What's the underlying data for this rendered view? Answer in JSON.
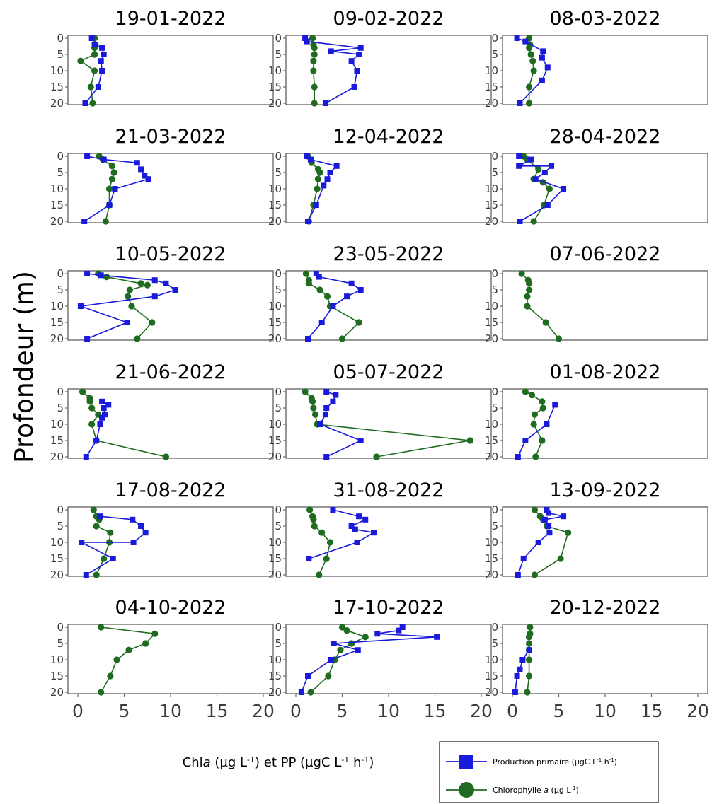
{
  "chart_data": {
    "type": "line",
    "layout": "small-multiples-3x6",
    "y_axis": {
      "label": "Profondeur (m)",
      "range": [
        0,
        20
      ],
      "reversed": true,
      "ticks": [
        0,
        5,
        10,
        15,
        20
      ]
    },
    "x_axis": {
      "label_parts": [
        "Chl",
        "a",
        " (µg L",
        "-1",
        ") et PP (µgC L",
        "-1",
        " h",
        "-1",
        ")"
      ],
      "range": [
        0,
        20
      ],
      "ticks": [
        0,
        5,
        10,
        15,
        20
      ]
    },
    "depths": [
      0,
      2,
      3,
      5,
      7,
      10,
      15,
      20
    ],
    "series": [
      {
        "key": "pp",
        "name": "Production primaire (µgC L⁻¹ h⁻¹)",
        "name_parts": [
          "Production primaire (µgC L",
          "-1",
          " h",
          "-1",
          ")"
        ],
        "color": "#1a1adc",
        "marker": "square"
      },
      {
        "key": "chl",
        "name": "Chlorophylle a (µg L⁻¹)",
        "name_parts": [
          "Chlorophylle ",
          "a",
          " (µg L",
          "-1",
          ")"
        ],
        "color": "#1f6b1f",
        "marker": "circle"
      }
    ],
    "panels": [
      {
        "date": "19-01-2022",
        "pp": [
          [
            1.5,
            0
          ],
          [
            1.8,
            2
          ],
          [
            2.6,
            3
          ],
          [
            2.8,
            5
          ],
          [
            2.5,
            7
          ],
          [
            2.6,
            10
          ],
          [
            2.2,
            15
          ],
          [
            0.8,
            20
          ]
        ],
        "chl": [
          [
            1.8,
            0
          ],
          [
            1.9,
            2
          ],
          [
            1.8,
            3
          ],
          [
            1.8,
            5
          ],
          [
            0.3,
            7
          ],
          [
            1.8,
            10
          ],
          [
            1.4,
            15
          ],
          [
            1.6,
            20
          ]
        ]
      },
      {
        "date": "09-02-2022",
        "pp": [
          [
            1.0,
            0
          ],
          [
            1.2,
            1
          ],
          [
            7.0,
            3
          ],
          [
            3.8,
            4
          ],
          [
            6.8,
            5
          ],
          [
            6.0,
            7
          ],
          [
            6.6,
            10
          ],
          [
            6.3,
            15
          ],
          [
            3.2,
            20
          ]
        ],
        "chl": [
          [
            1.8,
            0
          ],
          [
            1.9,
            2
          ],
          [
            2.0,
            3
          ],
          [
            2.0,
            5
          ],
          [
            1.9,
            7
          ],
          [
            1.9,
            10
          ],
          [
            2.0,
            15
          ],
          [
            2.0,
            20
          ]
        ]
      },
      {
        "date": "08-03-2022",
        "pp": [
          [
            0.5,
            0
          ],
          [
            1.4,
            1
          ],
          [
            3.3,
            4
          ],
          [
            3.2,
            6
          ],
          [
            3.8,
            9
          ],
          [
            3.2,
            13
          ],
          [
            0.8,
            20
          ]
        ],
        "chl": [
          [
            1.8,
            0
          ],
          [
            1.9,
            2
          ],
          [
            1.8,
            3
          ],
          [
            2.0,
            5
          ],
          [
            2.2,
            7
          ],
          [
            2.3,
            10
          ],
          [
            1.8,
            15
          ],
          [
            1.8,
            20
          ]
        ]
      },
      {
        "date": "21-03-2022",
        "pp": [
          [
            1.0,
            0
          ],
          [
            2.8,
            1
          ],
          [
            6.4,
            2
          ],
          [
            6.8,
            4
          ],
          [
            7.2,
            6
          ],
          [
            7.6,
            7
          ],
          [
            4.0,
            10
          ],
          [
            3.4,
            15
          ],
          [
            0.7,
            20
          ]
        ],
        "chl": [
          [
            2.3,
            0
          ],
          [
            2.7,
            1
          ],
          [
            3.7,
            3
          ],
          [
            3.9,
            5
          ],
          [
            3.7,
            7
          ],
          [
            3.4,
            10
          ],
          [
            3.4,
            15
          ],
          [
            3.0,
            20
          ]
        ]
      },
      {
        "date": "12-04-2022",
        "pp": [
          [
            1.2,
            0
          ],
          [
            1.6,
            1
          ],
          [
            4.4,
            3
          ],
          [
            3.7,
            5
          ],
          [
            3.4,
            7
          ],
          [
            3.0,
            9
          ],
          [
            2.2,
            15
          ],
          [
            1.3,
            20
          ]
        ],
        "chl": [
          [
            1.3,
            0
          ],
          [
            1.7,
            2
          ],
          [
            2.4,
            4
          ],
          [
            2.6,
            5
          ],
          [
            2.4,
            7
          ],
          [
            2.3,
            10
          ],
          [
            1.9,
            15
          ],
          [
            1.4,
            20
          ]
        ]
      },
      {
        "date": "28-04-2022",
        "pp": [
          [
            0.7,
            0
          ],
          [
            2.0,
            1
          ],
          [
            0.7,
            3
          ],
          [
            4.2,
            3
          ],
          [
            3.5,
            5
          ],
          [
            2.5,
            7
          ],
          [
            5.5,
            10
          ],
          [
            3.8,
            15
          ],
          [
            0.8,
            20
          ]
        ],
        "chl": [
          [
            1.2,
            0
          ],
          [
            1.6,
            1
          ],
          [
            2.8,
            4
          ],
          [
            2.3,
            7
          ],
          [
            3.3,
            8
          ],
          [
            4.0,
            10
          ],
          [
            3.4,
            15
          ],
          [
            2.3,
            20
          ]
        ]
      },
      {
        "date": "10-05-2022",
        "pp": [
          [
            1.0,
            0
          ],
          [
            2.5,
            0.5
          ],
          [
            8.3,
            2
          ],
          [
            9.5,
            3
          ],
          [
            10.5,
            5
          ],
          [
            8.3,
            7
          ],
          [
            0.3,
            10
          ],
          [
            5.3,
            15
          ],
          [
            1.0,
            20
          ]
        ],
        "chl": [
          [
            2.2,
            0
          ],
          [
            3.1,
            1
          ],
          [
            6.8,
            3
          ],
          [
            7.5,
            3.5
          ],
          [
            5.6,
            5
          ],
          [
            5.4,
            7
          ],
          [
            5.8,
            10
          ],
          [
            8.0,
            15
          ],
          [
            6.4,
            20
          ]
        ]
      },
      {
        "date": "23-05-2022",
        "pp": [
          [
            2.2,
            0
          ],
          [
            2.5,
            1
          ],
          [
            6.0,
            3
          ],
          [
            7.0,
            5
          ],
          [
            5.5,
            7
          ],
          [
            4.0,
            10
          ],
          [
            2.8,
            15
          ],
          [
            1.3,
            20
          ]
        ],
        "chl": [
          [
            1.1,
            0
          ],
          [
            1.4,
            2
          ],
          [
            1.4,
            3
          ],
          [
            2.6,
            5
          ],
          [
            3.4,
            7
          ],
          [
            3.7,
            10
          ],
          [
            6.8,
            15
          ],
          [
            5.0,
            20
          ]
        ]
      },
      {
        "date": "07-06-2022",
        "pp": [],
        "chl": [
          [
            1.0,
            0
          ],
          [
            1.7,
            2
          ],
          [
            1.8,
            3
          ],
          [
            1.8,
            5
          ],
          [
            1.6,
            7
          ],
          [
            1.6,
            10
          ],
          [
            3.6,
            15
          ],
          [
            5.0,
            20
          ]
        ]
      },
      {
        "date": "21-06-2022",
        "pp": [
          [
            2.6,
            3
          ],
          [
            3.3,
            4
          ],
          [
            2.8,
            5
          ],
          [
            2.9,
            7
          ],
          [
            2.6,
            8
          ],
          [
            2.4,
            10
          ],
          [
            2.0,
            15
          ],
          [
            0.9,
            20
          ]
        ],
        "chl": [
          [
            0.5,
            0
          ],
          [
            1.3,
            2
          ],
          [
            1.3,
            3
          ],
          [
            1.5,
            5
          ],
          [
            2.2,
            7
          ],
          [
            1.5,
            10
          ],
          [
            2.0,
            15
          ],
          [
            9.5,
            20
          ]
        ]
      },
      {
        "date": "05-07-2022",
        "pp": [
          [
            3.3,
            0
          ],
          [
            4.3,
            1
          ],
          [
            4.0,
            3
          ],
          [
            3.3,
            5
          ],
          [
            3.2,
            7
          ],
          [
            2.6,
            10
          ],
          [
            7.0,
            15
          ],
          [
            3.3,
            20
          ]
        ],
        "chl": [
          [
            1.0,
            0
          ],
          [
            1.7,
            2
          ],
          [
            1.8,
            3
          ],
          [
            1.9,
            5
          ],
          [
            2.1,
            7
          ],
          [
            2.3,
            10
          ],
          [
            18.8,
            15
          ],
          [
            8.7,
            20
          ]
        ]
      },
      {
        "date": "01-08-2022",
        "pp": [
          [
            4.6,
            4
          ],
          [
            3.7,
            10
          ],
          [
            1.4,
            15
          ],
          [
            0.6,
            20
          ]
        ],
        "chl": [
          [
            1.4,
            0
          ],
          [
            2.1,
            1
          ],
          [
            3.2,
            3
          ],
          [
            3.3,
            5
          ],
          [
            2.4,
            7
          ],
          [
            2.3,
            10
          ],
          [
            3.2,
            15
          ],
          [
            2.5,
            20
          ]
        ]
      },
      {
        "date": "17-08-2022",
        "pp": [
          [
            2.4,
            2
          ],
          [
            5.9,
            3
          ],
          [
            6.8,
            5
          ],
          [
            7.3,
            7
          ],
          [
            6.0,
            10
          ],
          [
            0.4,
            10
          ],
          [
            3.8,
            15
          ],
          [
            0.9,
            20
          ]
        ],
        "chl": [
          [
            1.7,
            0
          ],
          [
            2.0,
            2
          ],
          [
            2.3,
            3
          ],
          [
            2.0,
            5
          ],
          [
            3.5,
            7
          ],
          [
            3.4,
            10
          ],
          [
            2.8,
            15
          ],
          [
            2.0,
            20
          ]
        ]
      },
      {
        "date": "31-08-2022",
        "pp": [
          [
            4.0,
            0
          ],
          [
            6.8,
            2
          ],
          [
            7.5,
            3
          ],
          [
            6.0,
            5
          ],
          [
            6.4,
            6
          ],
          [
            8.4,
            7
          ],
          [
            6.6,
            10
          ],
          [
            1.4,
            15
          ]
        ],
        "chl": [
          [
            1.5,
            0
          ],
          [
            1.8,
            2
          ],
          [
            1.9,
            3
          ],
          [
            2.0,
            5
          ],
          [
            2.8,
            7
          ],
          [
            3.7,
            10
          ],
          [
            3.3,
            15
          ],
          [
            2.5,
            20
          ]
        ]
      },
      {
        "date": "13-09-2022",
        "pp": [
          [
            3.7,
            0
          ],
          [
            3.9,
            1
          ],
          [
            5.5,
            2
          ],
          [
            3.5,
            3
          ],
          [
            3.9,
            5
          ],
          [
            4.0,
            7
          ],
          [
            2.8,
            10
          ],
          [
            1.2,
            15
          ],
          [
            0.6,
            20
          ]
        ],
        "chl": [
          [
            2.4,
            0
          ],
          [
            3.0,
            2
          ],
          [
            3.3,
            3
          ],
          [
            3.7,
            5
          ],
          [
            6.0,
            7
          ],
          [
            5.2,
            15
          ],
          [
            2.4,
            20
          ]
        ]
      },
      {
        "date": "04-10-2022",
        "pp": [],
        "chl": [
          [
            2.5,
            0
          ],
          [
            8.3,
            2
          ],
          [
            7.3,
            5
          ],
          [
            5.5,
            7
          ],
          [
            4.2,
            10
          ],
          [
            3.5,
            15
          ],
          [
            2.5,
            20
          ]
        ]
      },
      {
        "date": "17-10-2022",
        "pp": [
          [
            11.5,
            0
          ],
          [
            11.1,
            1
          ],
          [
            8.8,
            2
          ],
          [
            15.2,
            3
          ],
          [
            4.1,
            5
          ],
          [
            6.7,
            7
          ],
          [
            3.8,
            10
          ],
          [
            1.3,
            15
          ],
          [
            0.6,
            20
          ]
        ],
        "chl": [
          [
            5.0,
            0
          ],
          [
            5.5,
            1
          ],
          [
            7.5,
            3
          ],
          [
            6.0,
            5
          ],
          [
            4.8,
            7
          ],
          [
            4.2,
            10
          ],
          [
            3.5,
            15
          ],
          [
            1.6,
            20
          ]
        ]
      },
      {
        "date": "20-12-2022",
        "pp": [
          [
            1.8,
            7
          ],
          [
            1.1,
            10
          ],
          [
            0.8,
            13
          ],
          [
            0.5,
            15
          ],
          [
            0.3,
            20
          ]
        ],
        "chl": [
          [
            1.9,
            0
          ],
          [
            1.9,
            2
          ],
          [
            1.8,
            3
          ],
          [
            1.8,
            5
          ],
          [
            1.8,
            7
          ],
          [
            1.8,
            10
          ],
          [
            1.8,
            15
          ],
          [
            1.6,
            20
          ]
        ]
      }
    ]
  }
}
